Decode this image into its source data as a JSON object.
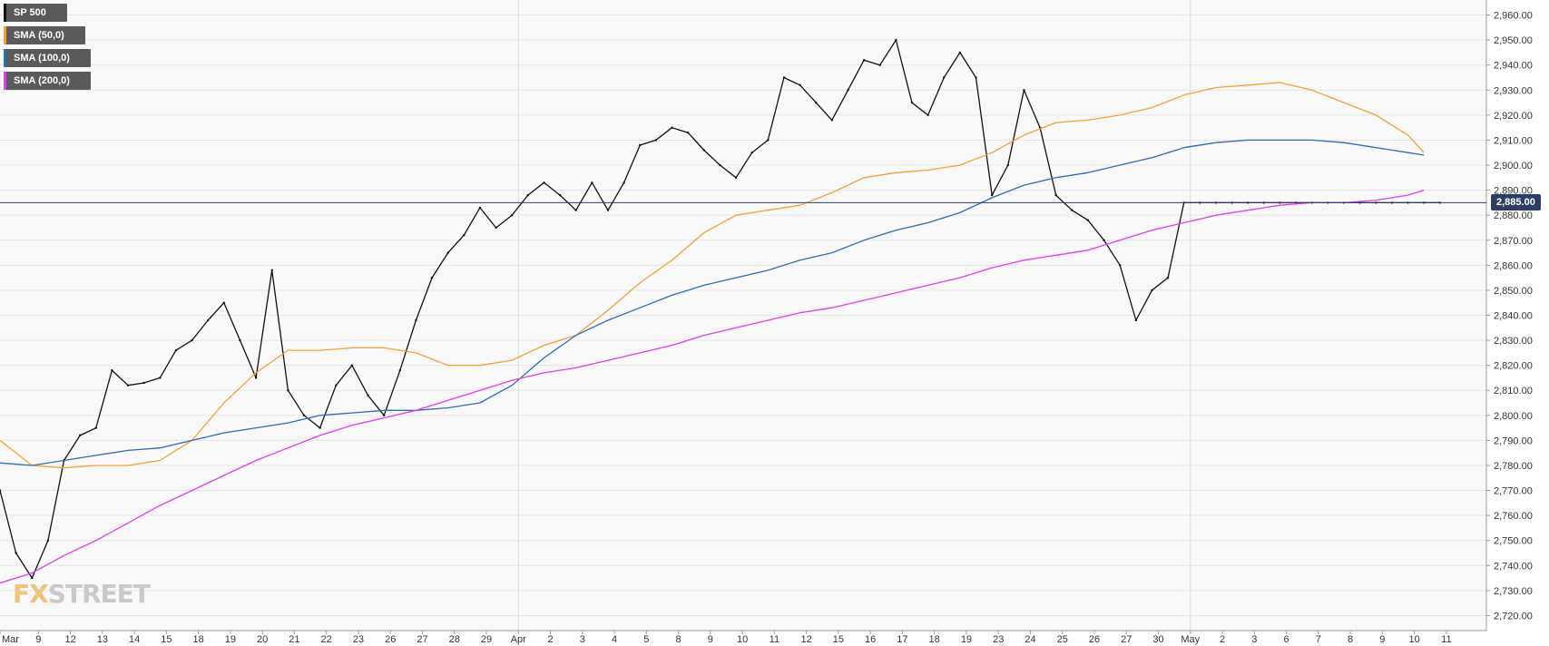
{
  "legend": {
    "items": [
      {
        "label": "SP 500",
        "color": "#111111"
      },
      {
        "label": "SMA (50,0)",
        "color": "#f5a033"
      },
      {
        "label": "SMA (100,0)",
        "color": "#2e6bb8"
      },
      {
        "label": "SMA (200,0)",
        "color": "#e13bf0"
      }
    ]
  },
  "watermark": {
    "part1": "FX",
    "part2": "STREET"
  },
  "current_price": {
    "label": "2,885.00",
    "value": 2885
  },
  "chart_data": {
    "type": "line",
    "title": "",
    "xlabel": "",
    "ylabel": "",
    "ylim": [
      2714,
      2966
    ],
    "grid": true,
    "legend_position": "top-left",
    "y_ticks": [
      "2,720.00",
      "2,730.00",
      "2,740.00",
      "2,750.00",
      "2,760.00",
      "2,770.00",
      "2,780.00",
      "2,790.00",
      "2,800.00",
      "2,810.00",
      "2,820.00",
      "2,830.00",
      "2,840.00",
      "2,850.00",
      "2,860.00",
      "2,870.00",
      "2,880.00",
      "2,890.00",
      "2,900.00",
      "2,910.00",
      "2,920.00",
      "2,930.00",
      "2,940.00",
      "2,950.00",
      "2,960.00"
    ],
    "x_ticks": [
      "Mar",
      "9",
      "12",
      "13",
      "14",
      "15",
      "18",
      "19",
      "20",
      "21",
      "22",
      "23",
      "26",
      "27",
      "28",
      "29",
      "Apr",
      "2",
      "3",
      "4",
      "5",
      "8",
      "9",
      "10",
      "11",
      "12",
      "15",
      "16",
      "17",
      "18",
      "19",
      "23",
      "24",
      "25",
      "26",
      "27",
      "30",
      "May",
      "2",
      "3",
      "6",
      "7",
      "8",
      "9",
      "10",
      "11"
    ],
    "x_tick_index": [
      0,
      1.2,
      2.2,
      3.2,
      4.2,
      5.2,
      6.2,
      7.2,
      8.2,
      9.2,
      10.2,
      11.2,
      12.2,
      13.2,
      14.2,
      15.2,
      16.2,
      17.2,
      18.2,
      19.2,
      20.2,
      21.2,
      22.2,
      23.2,
      24.2,
      25.2,
      26.2,
      27.2,
      28.2,
      29.2,
      30.2,
      31.2,
      32.2,
      33.2,
      34.2,
      35.2,
      36.2,
      37.2,
      38.2,
      39.2,
      40.2,
      41.2,
      42.2,
      43.2,
      44.2,
      45.2
    ],
    "price_line": 2885,
    "series": [
      {
        "name": "SP 500",
        "kind": "close",
        "color": "#111111",
        "x": [
          0,
          0.5,
          1,
          1.5,
          2,
          2.5,
          3,
          3.5,
          4,
          4.5,
          5,
          5.5,
          6,
          6.5,
          7,
          7.5,
          8,
          8.5,
          9,
          9.5,
          10,
          10.5,
          11,
          11.5,
          12,
          12.5,
          13,
          13.5,
          14,
          14.5,
          15,
          15.5,
          16,
          16.5,
          17,
          17.5,
          18,
          18.5,
          19,
          19.5,
          20,
          20.5,
          21,
          21.5,
          22,
          22.5,
          23,
          23.5,
          24,
          24.5,
          25,
          25.5,
          26,
          26.5,
          27,
          27.5,
          28,
          28.5,
          29,
          29.5,
          30,
          30.5,
          31,
          31.5,
          32,
          32.5,
          33,
          33.5,
          34,
          34.5,
          35,
          35.5,
          36,
          36.5,
          37,
          37.5,
          38,
          38.5,
          39,
          39.5,
          40,
          40.5,
          41,
          41.5,
          42,
          42.5,
          43,
          43.5,
          44,
          44.5,
          45
        ],
        "values": [
          2770,
          2745,
          2735,
          2750,
          2782,
          2792,
          2795,
          2818,
          2812,
          2813,
          2815,
          2826,
          2830,
          2838,
          2845,
          2830,
          2815,
          2858,
          2810,
          2800,
          2795,
          2812,
          2820,
          2808,
          2800,
          2818,
          2838,
          2855,
          2865,
          2872,
          2883,
          2875,
          2880,
          2888,
          2893,
          2888,
          2882,
          2893,
          2882,
          2893,
          2908,
          2910,
          2915,
          2913,
          2906,
          2900,
          2895,
          2905,
          2910,
          2935,
          2932,
          2925,
          2918,
          2930,
          2942,
          2940,
          2950,
          2925,
          2920,
          2935,
          2945,
          2935,
          2888,
          2900,
          2930,
          2915,
          2888,
          2882,
          2878,
          2870,
          2860,
          2838,
          2850,
          2855,
          2885,
          2885,
          2885,
          2885,
          2885,
          2885,
          2885,
          2885,
          2885,
          2885,
          2885,
          2885,
          2885,
          2885,
          2885,
          2885,
          2885
        ]
      },
      {
        "name": "SMA (50,0)",
        "kind": "line",
        "color": "#f5a033",
        "x": [
          0,
          1,
          2,
          3,
          4,
          5,
          6,
          7,
          8,
          9,
          10,
          11,
          12,
          13,
          14,
          15,
          16,
          17,
          18,
          19,
          20,
          21,
          22,
          23,
          24,
          25,
          26,
          27,
          28,
          29,
          30,
          31,
          32,
          33,
          34,
          35,
          36,
          37,
          38,
          39,
          40,
          41,
          42,
          43,
          44,
          44.5
        ],
        "values": [
          2790,
          2780,
          2779,
          2780,
          2780,
          2782,
          2790,
          2805,
          2817,
          2826,
          2826,
          2827,
          2827,
          2825,
          2820,
          2820,
          2822,
          2828,
          2832,
          2842,
          2853,
          2862,
          2873,
          2880,
          2882,
          2884,
          2889,
          2895,
          2897,
          2898,
          2900,
          2905,
          2912,
          2917,
          2918,
          2920,
          2923,
          2928,
          2931,
          2932,
          2933,
          2930,
          2925,
          2920,
          2912,
          2905
        ]
      },
      {
        "name": "SMA (100,0)",
        "kind": "line",
        "color": "#2e6bb8",
        "x": [
          0,
          1,
          2,
          3,
          4,
          5,
          6,
          7,
          8,
          9,
          10,
          11,
          12,
          13,
          14,
          15,
          16,
          17,
          18,
          19,
          20,
          21,
          22,
          23,
          24,
          25,
          26,
          27,
          28,
          29,
          30,
          31,
          32,
          33,
          34,
          35,
          36,
          37,
          38,
          39,
          40,
          41,
          42,
          43,
          44,
          44.5
        ],
        "values": [
          2781,
          2780,
          2782,
          2784,
          2786,
          2787,
          2790,
          2793,
          2795,
          2797,
          2800,
          2801,
          2802,
          2802,
          2803,
          2805,
          2812,
          2823,
          2832,
          2838,
          2843,
          2848,
          2852,
          2855,
          2858,
          2862,
          2865,
          2870,
          2874,
          2877,
          2881,
          2887,
          2892,
          2895,
          2897,
          2900,
          2903,
          2907,
          2909,
          2910,
          2910,
          2910,
          2909,
          2907,
          2905,
          2904
        ]
      },
      {
        "name": "SMA (200,0)",
        "kind": "line",
        "color": "#e13bf0",
        "x": [
          0,
          1,
          2,
          3,
          4,
          5,
          6,
          7,
          8,
          9,
          10,
          11,
          12,
          13,
          14,
          15,
          16,
          17,
          18,
          19,
          20,
          21,
          22,
          23,
          24,
          25,
          26,
          27,
          28,
          29,
          30,
          31,
          32,
          33,
          34,
          35,
          36,
          37,
          38,
          39,
          40,
          41,
          42,
          43,
          44,
          44.5
        ],
        "values": [
          2733,
          2737,
          2744,
          2750,
          2757,
          2764,
          2770,
          2776,
          2782,
          2787,
          2792,
          2796,
          2799,
          2802,
          2806,
          2810,
          2814,
          2817,
          2819,
          2822,
          2825,
          2828,
          2832,
          2835,
          2838,
          2841,
          2843,
          2846,
          2849,
          2852,
          2855,
          2859,
          2862,
          2864,
          2866,
          2870,
          2874,
          2877,
          2880,
          2882,
          2884,
          2885,
          2885,
          2886,
          2888,
          2890
        ]
      }
    ]
  }
}
